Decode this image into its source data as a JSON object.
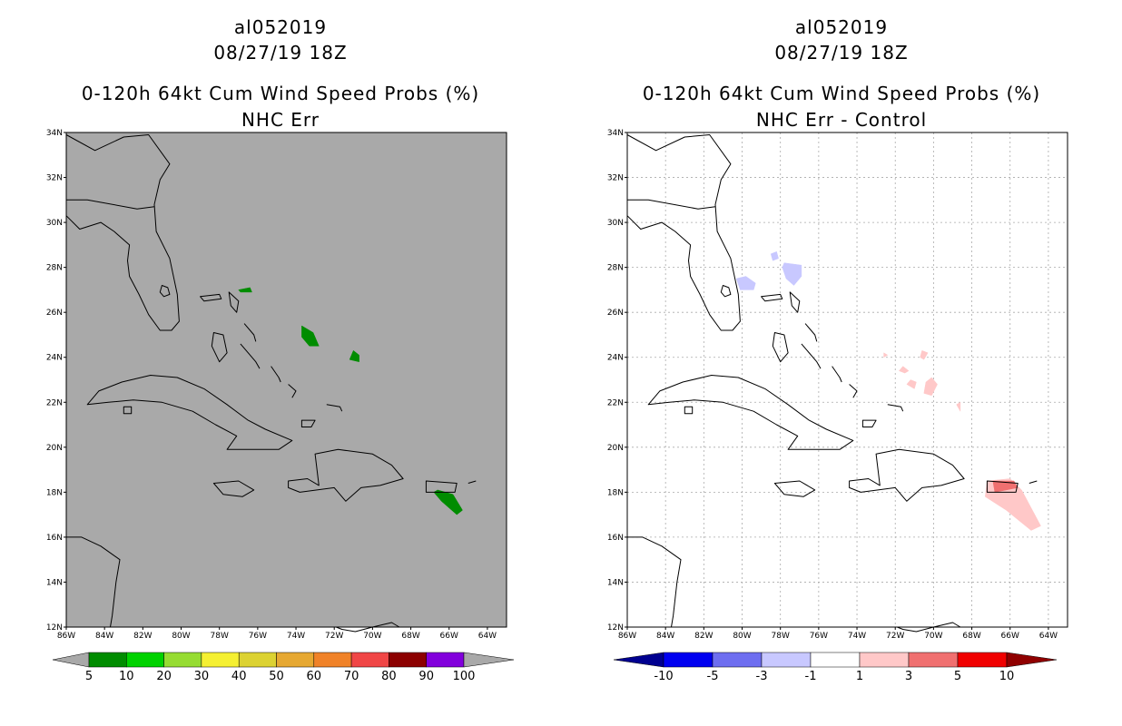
{
  "panels": [
    {
      "id": "left",
      "title_lines": [
        "al052019",
        "08/27/19 18Z",
        "0-120h 64kt Cum Wind Speed Probs (%)",
        "NHC Err"
      ],
      "background": "#a9a9a9",
      "gridlines": false,
      "colorbar": {
        "labels": [
          "5",
          "10",
          "20",
          "30",
          "40",
          "50",
          "60",
          "70",
          "80",
          "90",
          "100"
        ],
        "colors": [
          "#008c00",
          "#00d200",
          "#96dc32",
          "#f5f032",
          "#dcd232",
          "#e6a832",
          "#f08228",
          "#f04646",
          "#8c0000",
          "#8200dc"
        ],
        "end_color": "#a9a9a9"
      },
      "shaded_regions": [
        {
          "color": "#008c00",
          "points": [
            [
              -77.0,
              27.0
            ],
            [
              -76.4,
              27.1
            ],
            [
              -76.3,
              26.9
            ],
            [
              -76.9,
              26.9
            ]
          ]
        },
        {
          "color": "#008c00",
          "points": [
            [
              -73.7,
              25.4
            ],
            [
              -73.1,
              25.1
            ],
            [
              -72.8,
              24.5
            ],
            [
              -73.3,
              24.5
            ],
            [
              -73.7,
              24.9
            ]
          ]
        },
        {
          "color": "#008c00",
          "points": [
            [
              -71.0,
              24.3
            ],
            [
              -70.7,
              24.1
            ],
            [
              -70.7,
              23.8
            ],
            [
              -71.2,
              23.9
            ]
          ]
        },
        {
          "color": "#008c00",
          "points": [
            [
              -66.6,
              18.1
            ],
            [
              -65.8,
              17.9
            ],
            [
              -65.3,
              17.2
            ],
            [
              -65.6,
              17.0
            ],
            [
              -66.4,
              17.6
            ],
            [
              -66.8,
              18.0
            ]
          ]
        }
      ]
    },
    {
      "id": "right",
      "title_lines": [
        "al052019",
        "08/27/19 18Z",
        "0-120h 64kt Cum Wind Speed Probs (%)",
        "NHC Err - Control"
      ],
      "background": "#ffffff",
      "gridlines": true,
      "colorbar": {
        "labels": [
          "-10",
          "-5",
          "-3",
          "-1",
          "1",
          "3",
          "5",
          "10"
        ],
        "colors": [
          "#0000f0",
          "#6e6ef0",
          "#c8c8ff",
          "#ffffff",
          "#ffc8c8",
          "#f07070",
          "#f00000"
        ],
        "start_color": "#000090",
        "end_color": "#900000"
      },
      "shaded_regions": [
        {
          "color": "#c8c8ff",
          "points": [
            [
              -80.3,
              27.5
            ],
            [
              -79.8,
              27.6
            ],
            [
              -79.3,
              27.3
            ],
            [
              -79.4,
              27.0
            ],
            [
              -80.1,
              27.0
            ]
          ]
        },
        {
          "color": "#c8c8ff",
          "points": [
            [
              -78.5,
              28.6
            ],
            [
              -78.2,
              28.7
            ],
            [
              -78.1,
              28.4
            ],
            [
              -78.4,
              28.3
            ]
          ]
        },
        {
          "color": "#c8c8ff",
          "points": [
            [
              -77.8,
              28.2
            ],
            [
              -76.9,
              28.1
            ],
            [
              -76.9,
              27.6
            ],
            [
              -77.3,
              27.2
            ],
            [
              -77.7,
              27.5
            ],
            [
              -77.9,
              28.0
            ]
          ]
        },
        {
          "color": "#ffc8c8",
          "points": [
            [
              -70.6,
              24.3
            ],
            [
              -70.3,
              24.2
            ],
            [
              -70.5,
              23.9
            ],
            [
              -70.7,
              24.0
            ]
          ]
        },
        {
          "color": "#ffc8c8",
          "points": [
            [
              -71.6,
              23.6
            ],
            [
              -71.3,
              23.4
            ],
            [
              -71.5,
              23.3
            ],
            [
              -71.8,
              23.4
            ]
          ]
        },
        {
          "color": "#ffc8c8",
          "points": [
            [
              -70.1,
              23.1
            ],
            [
              -69.8,
              22.8
            ],
            [
              -70.1,
              22.3
            ],
            [
              -70.5,
              22.4
            ],
            [
              -70.4,
              22.9
            ]
          ]
        },
        {
          "color": "#ffc8c8",
          "points": [
            [
              -71.2,
              23.0
            ],
            [
              -70.9,
              22.9
            ],
            [
              -71.0,
              22.6
            ],
            [
              -71.4,
              22.8
            ]
          ]
        },
        {
          "color": "#ffc8c8",
          "points": [
            [
              -72.6,
              24.2
            ],
            [
              -72.4,
              24.1
            ],
            [
              -72.6,
              24.0
            ]
          ]
        },
        {
          "color": "#ffc8c8",
          "points": [
            [
              -68.8,
              21.9
            ],
            [
              -68.6,
              22.0
            ],
            [
              -68.6,
              21.6
            ]
          ]
        },
        {
          "color": "#ffc8c8",
          "points": [
            [
              -67.2,
              18.5
            ],
            [
              -66.0,
              18.6
            ],
            [
              -65.4,
              18.1
            ],
            [
              -64.4,
              16.5
            ],
            [
              -64.9,
              16.3
            ],
            [
              -66.2,
              17.2
            ],
            [
              -67.3,
              17.8
            ]
          ]
        },
        {
          "color": "#f07070",
          "points": [
            [
              -66.9,
              18.5
            ],
            [
              -65.8,
              18.5
            ],
            [
              -65.6,
              18.2
            ],
            [
              -66.8,
              18.0
            ]
          ]
        }
      ]
    }
  ],
  "map": {
    "lon_range": [
      -86,
      -63
    ],
    "lat_range": [
      12,
      34
    ],
    "x_ticks": [
      "86W",
      "84W",
      "82W",
      "80W",
      "78W",
      "76W",
      "74W",
      "72W",
      "70W",
      "68W",
      "66W",
      "64W"
    ],
    "y_ticks": [
      "12N",
      "14N",
      "16N",
      "18N",
      "20N",
      "22N",
      "24N",
      "26N",
      "28N",
      "30N",
      "32N",
      "34N"
    ]
  }
}
